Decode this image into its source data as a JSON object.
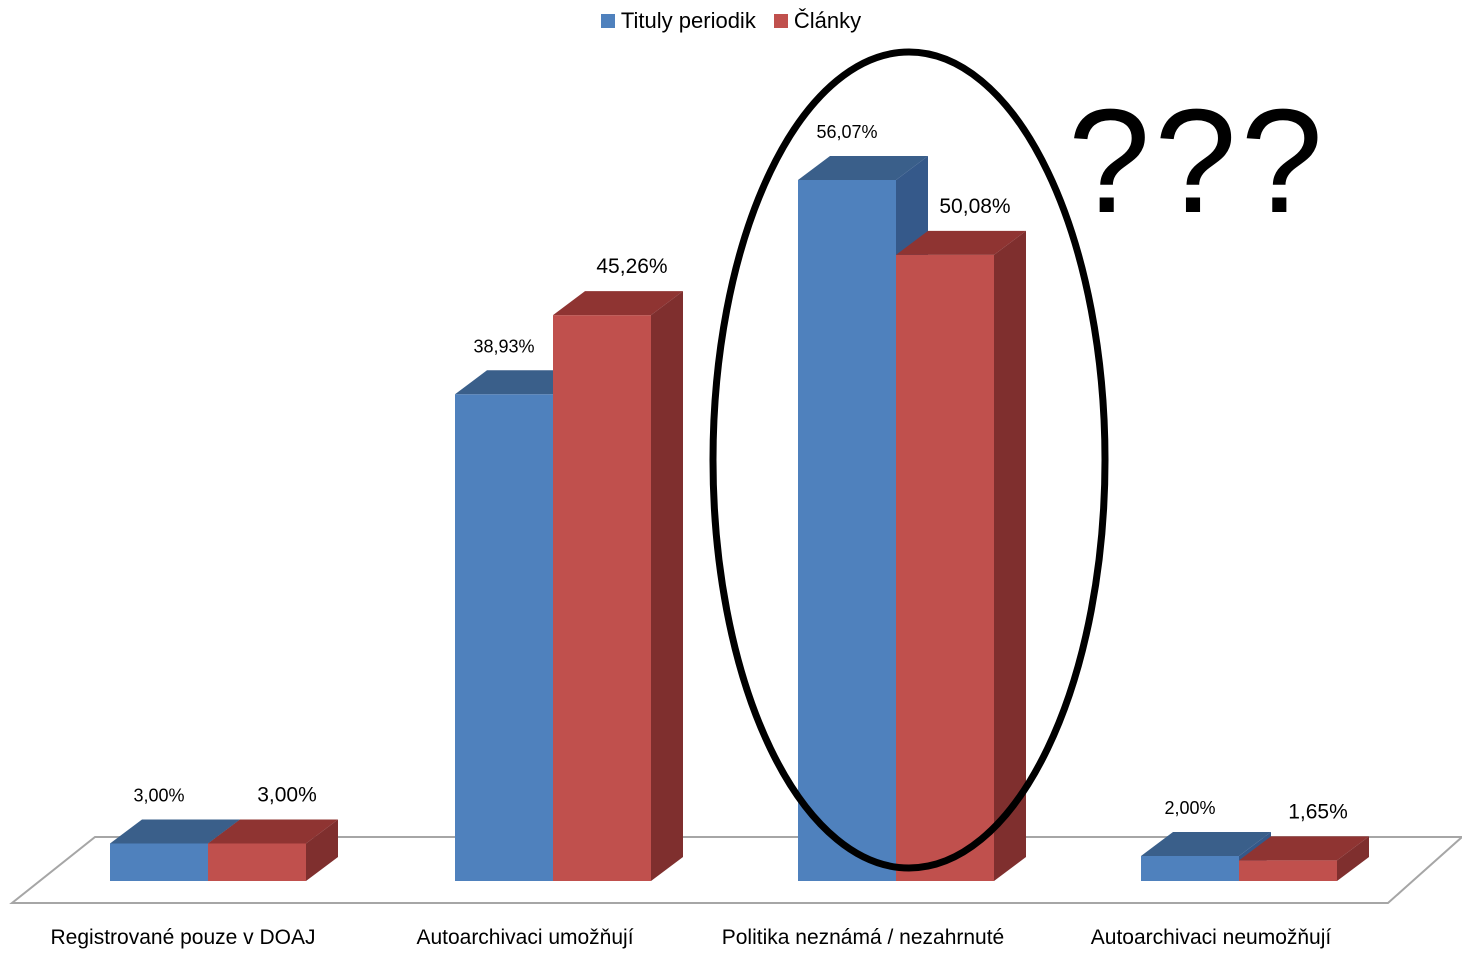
{
  "chart_data": {
    "type": "bar",
    "categories": [
      "Registrované pouze v DOAJ",
      "Autoarchivaci umožňují",
      "Politika neznámá / nezahrnuté",
      "Autoarchivaci neumožňují"
    ],
    "series": [
      {
        "name": "Tituly periodik",
        "values": [
          3.0,
          38.93,
          56.07,
          2.0
        ],
        "labels": [
          "3,00%",
          "38,93%",
          "56,07%",
          "2,00%"
        ],
        "color": "#4f81bd",
        "top_color": "#3a5f8a",
        "side_color": "#35598a"
      },
      {
        "name": "Články",
        "values": [
          3.0,
          45.26,
          50.08,
          1.65
        ],
        "labels": [
          "3,00%",
          "45,26%",
          "50,08%",
          "1,65%"
        ],
        "color": "#c0504d",
        "top_color": "#8f3432",
        "side_color": "#7f2f2e"
      }
    ],
    "ylim": [
      0,
      60
    ],
    "grid": false,
    "legend_position": "top",
    "annotation": "???",
    "highlight_category": "Politika neznámá / nezahrnuté"
  }
}
